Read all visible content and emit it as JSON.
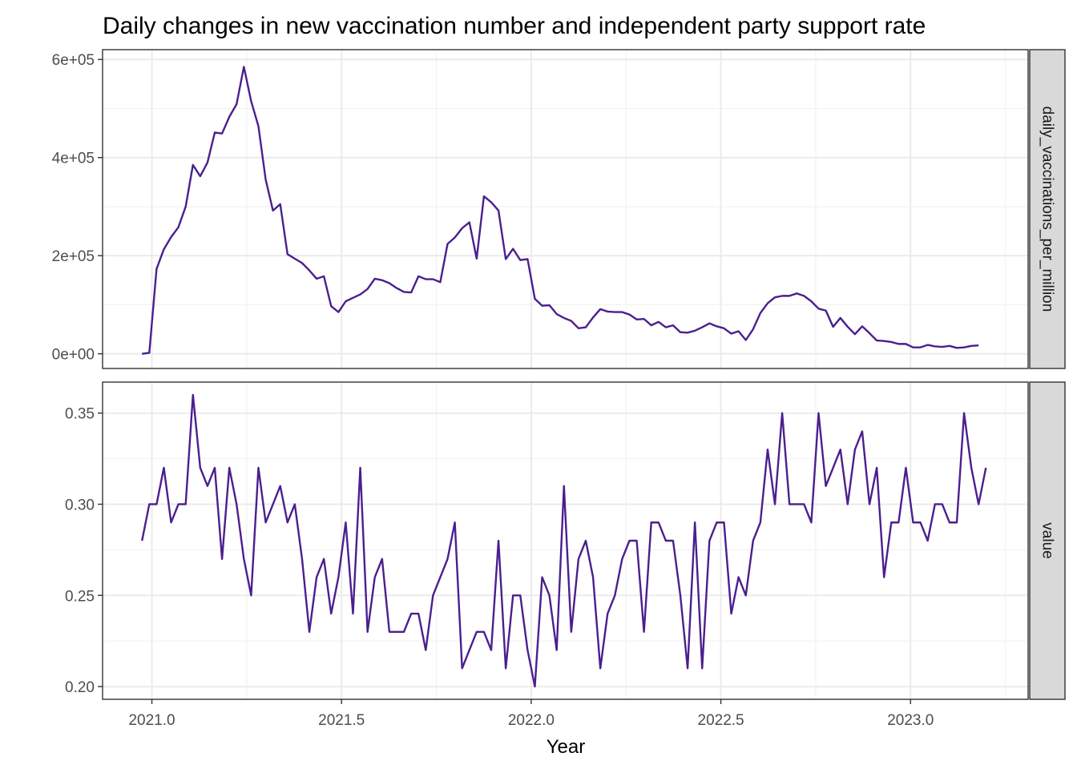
{
  "chart_data": {
    "type": "line",
    "title": "Daily changes in new vaccination number and independent party support rate",
    "xlabel": "Year",
    "xlim": [
      2020.87,
      2023.31
    ],
    "x_ticks": [
      2021.0,
      2021.5,
      2022.0,
      2022.5,
      2023.0
    ],
    "x_tick_labels": [
      "2021.0",
      "2021.5",
      "2022.0",
      "2022.5",
      "2023.0"
    ],
    "x_minor_ticks": [
      2021.25,
      2021.75,
      2022.25,
      2022.75,
      2023.25
    ],
    "x_start": 2020.974,
    "x_step": 0.019178,
    "line_color": "#4B1F8E",
    "grid": true,
    "facets": [
      {
        "strip": "daily_vaccinations_per_million",
        "ylim": [
          -30000,
          620000
        ],
        "y_ticks": [
          0,
          200000,
          400000,
          600000
        ],
        "y_tick_labels": [
          "0e+00",
          "2e+05",
          "4e+05",
          "6e+05"
        ],
        "y_minor_ticks": [
          100000,
          300000,
          500000
        ],
        "values": [
          0,
          2000,
          173000,
          213000,
          238000,
          258000,
          300000,
          385000,
          362000,
          390000,
          451000,
          449000,
          483000,
          509000,
          585000,
          515000,
          464000,
          355000,
          292000,
          305000,
          203000,
          194000,
          185000,
          170000,
          153000,
          158000,
          97000,
          85000,
          107000,
          114000,
          121000,
          132000,
          153000,
          150000,
          144000,
          134000,
          126000,
          125000,
          158000,
          152000,
          152000,
          146000,
          224000,
          237000,
          256000,
          268000,
          194000,
          321000,
          309000,
          292000,
          193000,
          214000,
          191000,
          193000,
          112000,
          98000,
          99000,
          81000,
          73000,
          67000,
          52000,
          54000,
          74000,
          91000,
          86000,
          85000,
          85000,
          80000,
          70000,
          71000,
          58000,
          65000,
          54000,
          58000,
          44000,
          43000,
          47000,
          54000,
          62000,
          56000,
          52000,
          41000,
          46000,
          28000,
          50000,
          83000,
          103000,
          115000,
          118000,
          118000,
          123000,
          118000,
          107000,
          92000,
          88000,
          55000,
          73000,
          55000,
          40000,
          56000,
          42000,
          27000,
          26000,
          24000,
          20000,
          20000,
          13000,
          13000,
          18000,
          15000,
          14000,
          16000,
          12000,
          13000,
          16000,
          17000
        ]
      },
      {
        "strip": "value",
        "ylim": [
          0.193,
          0.367
        ],
        "y_ticks": [
          0.2,
          0.25,
          0.3,
          0.35
        ],
        "y_tick_labels": [
          "0.20",
          "0.25",
          "0.30",
          "0.35"
        ],
        "y_minor_ticks": [
          0.225,
          0.275,
          0.325
        ],
        "values": [
          0.28,
          0.3,
          0.3,
          0.32,
          0.29,
          0.3,
          0.3,
          0.36,
          0.32,
          0.31,
          0.32,
          0.27,
          0.32,
          0.3,
          0.27,
          0.25,
          0.32,
          0.29,
          0.3,
          0.31,
          0.29,
          0.3,
          0.27,
          0.23,
          0.26,
          0.27,
          0.24,
          0.26,
          0.29,
          0.24,
          0.32,
          0.23,
          0.26,
          0.27,
          0.23,
          0.23,
          0.23,
          0.24,
          0.24,
          0.22,
          0.25,
          0.26,
          0.27,
          0.29,
          0.21,
          0.22,
          0.23,
          0.23,
          0.22,
          0.28,
          0.21,
          0.25,
          0.25,
          0.22,
          0.2,
          0.26,
          0.25,
          0.22,
          0.31,
          0.23,
          0.27,
          0.28,
          0.26,
          0.21,
          0.24,
          0.25,
          0.27,
          0.28,
          0.28,
          0.23,
          0.29,
          0.29,
          0.28,
          0.28,
          0.25,
          0.21,
          0.29,
          0.21,
          0.28,
          0.29,
          0.29,
          0.24,
          0.26,
          0.25,
          0.28,
          0.29,
          0.33,
          0.3,
          0.35,
          0.3,
          0.3,
          0.3,
          0.29,
          0.35,
          0.31,
          0.32,
          0.33,
          0.3,
          0.33,
          0.34,
          0.3,
          0.32,
          0.26,
          0.29,
          0.29,
          0.32,
          0.29,
          0.29,
          0.28,
          0.3,
          0.3,
          0.29,
          0.29,
          0.35,
          0.32,
          0.3,
          0.32
        ]
      }
    ]
  }
}
